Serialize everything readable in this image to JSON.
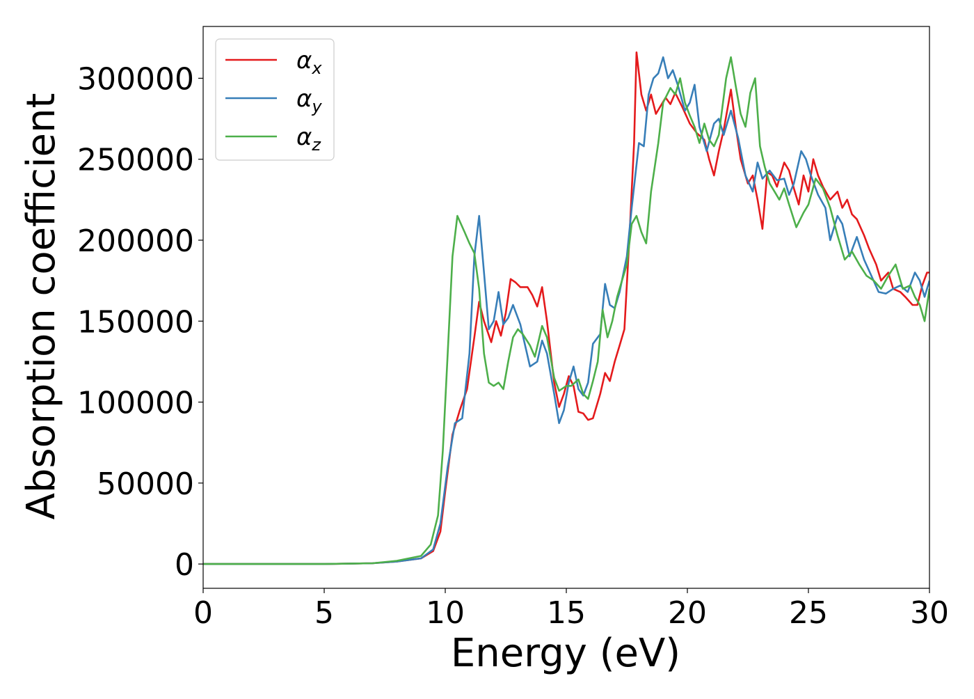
{
  "chart_data": {
    "type": "line",
    "xlabel": "Energy (eV)",
    "ylabel": "Absorption coefficient",
    "xlim": [
      0,
      30
    ],
    "ylim": [
      -15000,
      332000
    ],
    "xticks": [
      0,
      5,
      10,
      15,
      20,
      25,
      30
    ],
    "yticks": [
      0,
      50000,
      100000,
      150000,
      200000,
      250000,
      300000
    ],
    "grid": false,
    "legend_position": "top-left",
    "series": [
      {
        "name": "αx",
        "base": "α",
        "sub": "x",
        "color": "#e41a1c",
        "points": [
          [
            0,
            0
          ],
          [
            5,
            0
          ],
          [
            7,
            500
          ],
          [
            8,
            1500
          ],
          [
            9,
            3500
          ],
          [
            9.5,
            8000
          ],
          [
            9.8,
            20000
          ],
          [
            10,
            45000
          ],
          [
            10.3,
            80000
          ],
          [
            10.6,
            95000
          ],
          [
            10.9,
            108000
          ],
          [
            11.2,
            140000
          ],
          [
            11.4,
            162000
          ],
          [
            11.6,
            150000
          ],
          [
            11.9,
            137000
          ],
          [
            12.1,
            150000
          ],
          [
            12.3,
            141000
          ],
          [
            12.5,
            155000
          ],
          [
            12.7,
            176000
          ],
          [
            12.9,
            174000
          ],
          [
            13.1,
            171000
          ],
          [
            13.4,
            171000
          ],
          [
            13.6,
            166000
          ],
          [
            13.8,
            159000
          ],
          [
            14,
            171000
          ],
          [
            14.2,
            150000
          ],
          [
            14.5,
            112000
          ],
          [
            14.7,
            97000
          ],
          [
            14.9,
            105000
          ],
          [
            15.1,
            116000
          ],
          [
            15.3,
            110000
          ],
          [
            15.5,
            94000
          ],
          [
            15.7,
            93000
          ],
          [
            15.9,
            89000
          ],
          [
            16.1,
            90000
          ],
          [
            16.4,
            105000
          ],
          [
            16.6,
            118000
          ],
          [
            16.8,
            113000
          ],
          [
            17,
            125000
          ],
          [
            17.2,
            135000
          ],
          [
            17.4,
            145000
          ],
          [
            17.6,
            200000
          ],
          [
            17.8,
            260000
          ],
          [
            17.9,
            316000
          ],
          [
            18.1,
            290000
          ],
          [
            18.3,
            280000
          ],
          [
            18.5,
            290000
          ],
          [
            18.7,
            278000
          ],
          [
            18.9,
            283000
          ],
          [
            19.1,
            288000
          ],
          [
            19.3,
            284000
          ],
          [
            19.5,
            291000
          ],
          [
            19.8,
            282000
          ],
          [
            20.1,
            272000
          ],
          [
            20.4,
            266000
          ],
          [
            20.7,
            262000
          ],
          [
            20.9,
            250000
          ],
          [
            21.1,
            240000
          ],
          [
            21.3,
            255000
          ],
          [
            21.5,
            268000
          ],
          [
            21.8,
            293000
          ],
          [
            22,
            270000
          ],
          [
            22.2,
            250000
          ],
          [
            22.5,
            235000
          ],
          [
            22.7,
            240000
          ],
          [
            22.9,
            225000
          ],
          [
            23.1,
            207000
          ],
          [
            23.3,
            242000
          ],
          [
            23.5,
            240000
          ],
          [
            23.7,
            233000
          ],
          [
            24,
            248000
          ],
          [
            24.2,
            243000
          ],
          [
            24.4,
            232000
          ],
          [
            24.6,
            222000
          ],
          [
            24.8,
            240000
          ],
          [
            25,
            230000
          ],
          [
            25.2,
            250000
          ],
          [
            25.4,
            240000
          ],
          [
            25.6,
            233000
          ],
          [
            25.9,
            225000
          ],
          [
            26.2,
            230000
          ],
          [
            26.4,
            220000
          ],
          [
            26.6,
            225000
          ],
          [
            26.8,
            216000
          ],
          [
            27,
            213000
          ],
          [
            27.3,
            203000
          ],
          [
            27.5,
            195000
          ],
          [
            27.8,
            185000
          ],
          [
            28,
            175000
          ],
          [
            28.3,
            180000
          ],
          [
            28.5,
            170000
          ],
          [
            28.8,
            168000
          ],
          [
            29,
            165000
          ],
          [
            29.3,
            160000
          ],
          [
            29.5,
            160000
          ],
          [
            29.7,
            172000
          ],
          [
            29.9,
            180000
          ],
          [
            30,
            180000
          ]
        ]
      },
      {
        "name": "αy",
        "base": "α",
        "sub": "y",
        "color": "#377eb8",
        "points": [
          [
            0,
            0
          ],
          [
            5,
            0
          ],
          [
            7,
            500
          ],
          [
            8,
            1500
          ],
          [
            9,
            3500
          ],
          [
            9.5,
            9000
          ],
          [
            9.8,
            25000
          ],
          [
            10.1,
            60000
          ],
          [
            10.4,
            87000
          ],
          [
            10.7,
            90000
          ],
          [
            11,
            130000
          ],
          [
            11.2,
            190000
          ],
          [
            11.4,
            215000
          ],
          [
            11.6,
            180000
          ],
          [
            11.8,
            145000
          ],
          [
            12,
            150000
          ],
          [
            12.2,
            168000
          ],
          [
            12.4,
            148000
          ],
          [
            12.6,
            152000
          ],
          [
            12.8,
            160000
          ],
          [
            13.1,
            148000
          ],
          [
            13.3,
            135000
          ],
          [
            13.5,
            122000
          ],
          [
            13.8,
            125000
          ],
          [
            14,
            138000
          ],
          [
            14.2,
            130000
          ],
          [
            14.5,
            105000
          ],
          [
            14.7,
            87000
          ],
          [
            14.9,
            95000
          ],
          [
            15.1,
            112000
          ],
          [
            15.3,
            122000
          ],
          [
            15.5,
            108000
          ],
          [
            15.7,
            104000
          ],
          [
            15.9,
            112000
          ],
          [
            16.1,
            136000
          ],
          [
            16.4,
            142000
          ],
          [
            16.6,
            173000
          ],
          [
            16.8,
            160000
          ],
          [
            17,
            158000
          ],
          [
            17.2,
            168000
          ],
          [
            17.5,
            190000
          ],
          [
            17.7,
            220000
          ],
          [
            18,
            260000
          ],
          [
            18.2,
            258000
          ],
          [
            18.4,
            290000
          ],
          [
            18.6,
            300000
          ],
          [
            18.8,
            303000
          ],
          [
            19,
            313000
          ],
          [
            19.2,
            300000
          ],
          [
            19.4,
            305000
          ],
          [
            19.6,
            296000
          ],
          [
            19.9,
            280000
          ],
          [
            20.1,
            285000
          ],
          [
            20.3,
            296000
          ],
          [
            20.5,
            270000
          ],
          [
            20.8,
            255000
          ],
          [
            21.1,
            272000
          ],
          [
            21.3,
            275000
          ],
          [
            21.5,
            265000
          ],
          [
            21.8,
            280000
          ],
          [
            22.1,
            263000
          ],
          [
            22.4,
            240000
          ],
          [
            22.7,
            230000
          ],
          [
            22.9,
            248000
          ],
          [
            23.1,
            238000
          ],
          [
            23.4,
            243000
          ],
          [
            23.7,
            237000
          ],
          [
            24,
            238000
          ],
          [
            24.2,
            228000
          ],
          [
            24.4,
            235000
          ],
          [
            24.7,
            255000
          ],
          [
            24.9,
            250000
          ],
          [
            25.1,
            240000
          ],
          [
            25.4,
            228000
          ],
          [
            25.7,
            220000
          ],
          [
            25.9,
            200000
          ],
          [
            26.2,
            215000
          ],
          [
            26.4,
            210000
          ],
          [
            26.7,
            190000
          ],
          [
            27,
            202000
          ],
          [
            27.3,
            188000
          ],
          [
            27.6,
            178000
          ],
          [
            27.9,
            168000
          ],
          [
            28.2,
            167000
          ],
          [
            28.5,
            170000
          ],
          [
            28.8,
            172000
          ],
          [
            29.1,
            168000
          ],
          [
            29.4,
            180000
          ],
          [
            29.6,
            175000
          ],
          [
            29.8,
            165000
          ],
          [
            30,
            175000
          ]
        ]
      },
      {
        "name": "αz",
        "base": "α",
        "sub": "z",
        "color": "#4daf4a",
        "points": [
          [
            0,
            0
          ],
          [
            5,
            0
          ],
          [
            7,
            500
          ],
          [
            8,
            2000
          ],
          [
            9,
            5000
          ],
          [
            9.4,
            12000
          ],
          [
            9.7,
            30000
          ],
          [
            9.9,
            70000
          ],
          [
            10.1,
            130000
          ],
          [
            10.3,
            190000
          ],
          [
            10.5,
            215000
          ],
          [
            10.8,
            205000
          ],
          [
            11,
            198000
          ],
          [
            11.2,
            192000
          ],
          [
            11.4,
            170000
          ],
          [
            11.6,
            130000
          ],
          [
            11.8,
            112000
          ],
          [
            12,
            110000
          ],
          [
            12.2,
            112000
          ],
          [
            12.4,
            108000
          ],
          [
            12.6,
            125000
          ],
          [
            12.8,
            140000
          ],
          [
            13,
            145000
          ],
          [
            13.2,
            142000
          ],
          [
            13.5,
            135000
          ],
          [
            13.7,
            128000
          ],
          [
            14,
            147000
          ],
          [
            14.2,
            140000
          ],
          [
            14.5,
            115000
          ],
          [
            14.7,
            107000
          ],
          [
            15,
            110000
          ],
          [
            15.2,
            110000
          ],
          [
            15.5,
            114000
          ],
          [
            15.7,
            105000
          ],
          [
            15.9,
            102000
          ],
          [
            16.1,
            113000
          ],
          [
            16.3,
            125000
          ],
          [
            16.5,
            157000
          ],
          [
            16.7,
            140000
          ],
          [
            16.9,
            150000
          ],
          [
            17.1,
            165000
          ],
          [
            17.3,
            175000
          ],
          [
            17.5,
            185000
          ],
          [
            17.7,
            210000
          ],
          [
            17.9,
            215000
          ],
          [
            18.1,
            205000
          ],
          [
            18.3,
            198000
          ],
          [
            18.5,
            230000
          ],
          [
            18.8,
            260000
          ],
          [
            19,
            285000
          ],
          [
            19.3,
            294000
          ],
          [
            19.5,
            290000
          ],
          [
            19.7,
            300000
          ],
          [
            19.9,
            285000
          ],
          [
            20.1,
            277000
          ],
          [
            20.3,
            270000
          ],
          [
            20.5,
            260000
          ],
          [
            20.7,
            272000
          ],
          [
            20.9,
            262000
          ],
          [
            21.1,
            258000
          ],
          [
            21.3,
            265000
          ],
          [
            21.6,
            300000
          ],
          [
            21.8,
            313000
          ],
          [
            22,
            295000
          ],
          [
            22.2,
            278000
          ],
          [
            22.4,
            270000
          ],
          [
            22.6,
            291000
          ],
          [
            22.8,
            300000
          ],
          [
            23,
            258000
          ],
          [
            23.2,
            245000
          ],
          [
            23.4,
            235000
          ],
          [
            23.6,
            230000
          ],
          [
            23.8,
            225000
          ],
          [
            24,
            232000
          ],
          [
            24.2,
            222000
          ],
          [
            24.5,
            208000
          ],
          [
            24.8,
            217000
          ],
          [
            25,
            222000
          ],
          [
            25.3,
            238000
          ],
          [
            25.6,
            232000
          ],
          [
            25.9,
            220000
          ],
          [
            26.2,
            203000
          ],
          [
            26.5,
            188000
          ],
          [
            26.8,
            193000
          ],
          [
            27.1,
            185000
          ],
          [
            27.4,
            178000
          ],
          [
            27.7,
            175000
          ],
          [
            28,
            170000
          ],
          [
            28.3,
            178000
          ],
          [
            28.6,
            185000
          ],
          [
            28.9,
            170000
          ],
          [
            29.2,
            172000
          ],
          [
            29.4,
            165000
          ],
          [
            29.6,
            160000
          ],
          [
            29.8,
            150000
          ],
          [
            30,
            170000
          ]
        ]
      }
    ]
  }
}
